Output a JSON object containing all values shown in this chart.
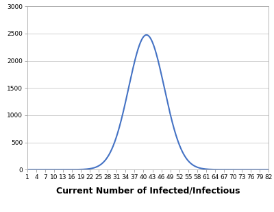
{
  "title": "Current Number of Infected/Infectious",
  "xlabel": "Current Number of Infected/Infectious",
  "ylabel": "",
  "xlim": [
    1,
    82
  ],
  "ylim": [
    0,
    3000
  ],
  "yticks": [
    0,
    500,
    1000,
    1500,
    2000,
    2500,
    3000
  ],
  "xticks": [
    1,
    4,
    7,
    10,
    13,
    16,
    19,
    22,
    25,
    28,
    31,
    34,
    37,
    40,
    43,
    46,
    49,
    52,
    55,
    58,
    61,
    64,
    67,
    70,
    73,
    76,
    79,
    82
  ],
  "peak": 41,
  "peak_value": 2475,
  "sigma": 6.0,
  "line_color": "#4472C4",
  "line_width": 1.5,
  "background_color": "#ffffff",
  "plot_background": "#ffffff",
  "grid_color": "#c8c8c8",
  "title_fontsize": 9,
  "tick_fontsize": 6.5,
  "xlabel_fontsize": 9
}
